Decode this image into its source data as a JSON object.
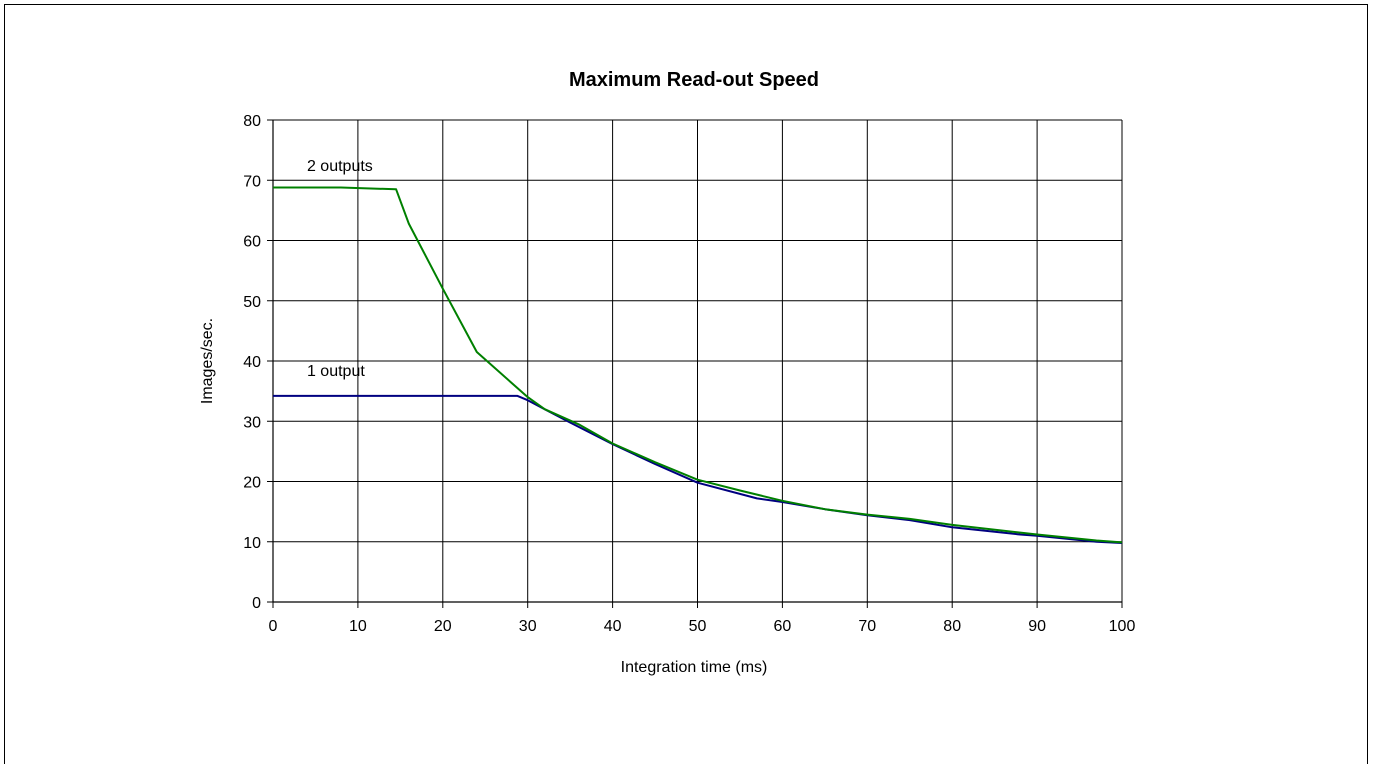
{
  "chart_data": {
    "type": "line",
    "title": "Maximum Read-out Speed",
    "xlabel": "Integration time (ms)",
    "ylabel": "Images/sec.",
    "xlim": [
      0,
      100
    ],
    "ylim": [
      0,
      80
    ],
    "x_ticks": [
      "0",
      "10",
      "20",
      "30",
      "40",
      "50",
      "60",
      "70",
      "80",
      "90",
      "100"
    ],
    "y_ticks": [
      "0",
      "10",
      "20",
      "30",
      "40",
      "50",
      "60",
      "70",
      "80"
    ],
    "grid": true,
    "legend": "none",
    "series": [
      {
        "name": "1 output",
        "color": "#000080",
        "points": [
          [
            0,
            34.2
          ],
          [
            10,
            34.2
          ],
          [
            20,
            34.2
          ],
          [
            28.8,
            34.2
          ],
          [
            30,
            33.5
          ],
          [
            32,
            32
          ],
          [
            35,
            29.8
          ],
          [
            40,
            26.2
          ],
          [
            45,
            22.9
          ],
          [
            50,
            19.8
          ],
          [
            57,
            17.2
          ],
          [
            60,
            16.6
          ],
          [
            65,
            15.4
          ],
          [
            70,
            14.4
          ],
          [
            75,
            13.6
          ],
          [
            80,
            12.4
          ],
          [
            88,
            11.2
          ],
          [
            90,
            11.0
          ],
          [
            97,
            10.0
          ],
          [
            100,
            9.8
          ]
        ]
      },
      {
        "name": "2 outputs",
        "color": "#008000",
        "points": [
          [
            0,
            68.8
          ],
          [
            8,
            68.8
          ],
          [
            14.5,
            68.5
          ],
          [
            16,
            62.8
          ],
          [
            20,
            52.0
          ],
          [
            24,
            41.5
          ],
          [
            28,
            36.5
          ],
          [
            30,
            34.0
          ],
          [
            32,
            32.0
          ],
          [
            36,
            29.5
          ],
          [
            40,
            26.3
          ],
          [
            45,
            23.2
          ],
          [
            50,
            20.3
          ],
          [
            55,
            18.5
          ],
          [
            60,
            16.8
          ],
          [
            65,
            15.4
          ],
          [
            70,
            14.5
          ],
          [
            75,
            13.8
          ],
          [
            80,
            12.8
          ],
          [
            90,
            11.2
          ],
          [
            97,
            10.2
          ],
          [
            100,
            9.9
          ]
        ]
      }
    ]
  }
}
